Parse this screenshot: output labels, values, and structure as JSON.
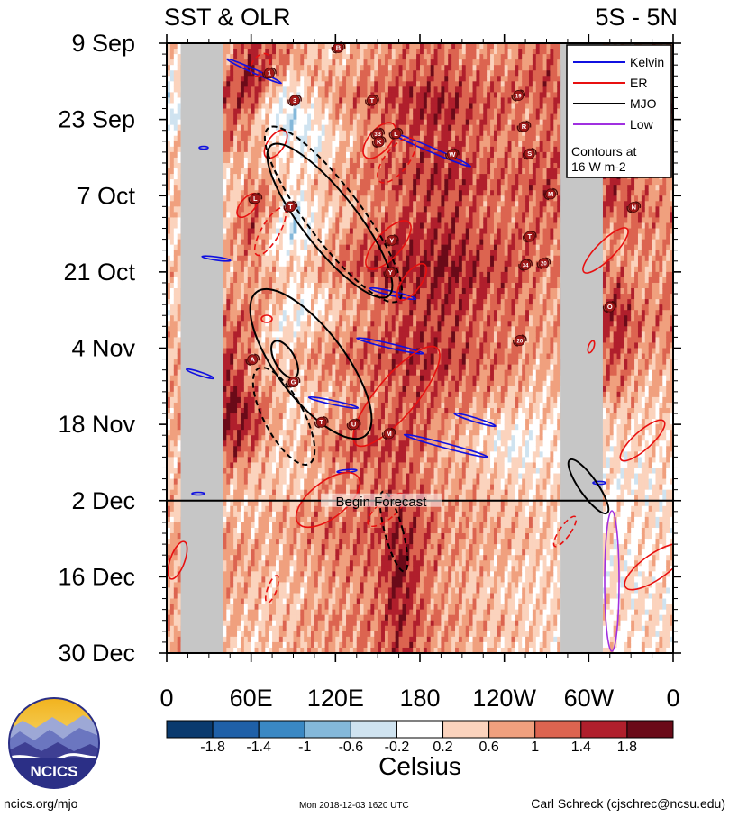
{
  "chart_data": {
    "type": "heatmap",
    "title_left": "SST & OLR",
    "title_right": "5S - 5N",
    "ytick_labels": [
      "9 Sep",
      "23 Sep",
      "7 Oct",
      "21 Oct",
      "4 Nov",
      "18 Nov",
      "2 Dec",
      "16 Dec",
      "30 Dec"
    ],
    "xtick_labels": [
      "0",
      "60E",
      "120E",
      "180",
      "120W",
      "60W",
      "0"
    ],
    "x_range_deg_east": [
      0,
      360
    ],
    "time_range_days": [
      0,
      112
    ],
    "forecast_label": "Begin Forecast",
    "forecast_start_day": 84,
    "legend": [
      {
        "label": "Kelvin",
        "color": "#1010e0"
      },
      {
        "label": "ER",
        "color": "#e81010"
      },
      {
        "label": "MJO",
        "color": "#000000"
      },
      {
        "label": "Low",
        "color": "#a030e0"
      }
    ],
    "legend_note": [
      "Contours at",
      "16 W m-2"
    ],
    "colorbar": {
      "label": "Celsius",
      "tick_labels": [
        "-1.8",
        "-1.4",
        "-1",
        "-0.6",
        "-0.2",
        "0.2",
        "0.6",
        "1",
        "1.4",
        "1.8"
      ],
      "colors": [
        "#0a3a6e",
        "#1f60a8",
        "#3a88c4",
        "#84b8da",
        "#cfe3f0",
        "#ffffff",
        "#fbd3bd",
        "#f0a07e",
        "#dc6450",
        "#b01f2c",
        "#6a0a18"
      ]
    },
    "land_bands_deg": [
      [
        10,
        40
      ],
      [
        280,
        310
      ]
    ],
    "hovmoller_columns": [
      {
        "lon": 0,
        "values": [
          0.4,
          0.2,
          -0.3,
          -0.4,
          0.3,
          0.5,
          0.6,
          0.5,
          0.4,
          0.3,
          0.5,
          0.4,
          0.3,
          0.6,
          0.5,
          0.4,
          0.6,
          0.5,
          0.4,
          0.5,
          0.5,
          0.6,
          0.6,
          0.7,
          0.7,
          0.6,
          0.8,
          0.8
        ]
      },
      {
        "lon": 45,
        "values": [
          0.8,
          1.2,
          1.5,
          1.3,
          1.1,
          0.6,
          0.3,
          0.4,
          0.7,
          0.8,
          0.6,
          0.9,
          1.1,
          1.3,
          1.5,
          1.7,
          1.9,
          1.8,
          1.6,
          1.0,
          0.6,
          0.5,
          0.7,
          0.9,
          0.8,
          0.7,
          0.6,
          0.5
        ]
      },
      {
        "lon": 60,
        "values": [
          1.6,
          1.9,
          1.5,
          0.9,
          0.8,
          0.6,
          0.9,
          1.2,
          1.4,
          1.1,
          0.9,
          0.7,
          1.2,
          1.0,
          0.8,
          0.9,
          1.4,
          1.6,
          1.2,
          0.7,
          0.6,
          0.4,
          0.6,
          0.8,
          0.7,
          0.6,
          0.5,
          0.4
        ]
      },
      {
        "lon": 75,
        "values": [
          1.2,
          1.0,
          0.3,
          -0.1,
          0.2,
          0.4,
          0.8,
          1.0,
          0.4,
          0.2,
          0.6,
          0.9,
          0.3,
          0.1,
          0.5,
          0.7,
          0.9,
          0.8,
          0.5,
          0.4,
          0.5,
          0.6,
          0.7,
          0.6,
          0.5,
          0.4,
          0.6,
          0.5
        ]
      },
      {
        "lon": 90,
        "values": [
          0.9,
          0.4,
          -0.2,
          -0.4,
          -0.1,
          0.3,
          0.2,
          -0.2,
          -0.4,
          0.1,
          0.4,
          0.2,
          -0.1,
          0.3,
          0.6,
          0.4,
          0.2,
          0.3,
          0.5,
          0.4,
          0.4,
          0.7,
          0.8,
          0.7,
          0.6,
          0.5,
          0.6,
          0.7
        ]
      },
      {
        "lon": 105,
        "values": [
          0.6,
          0.8,
          0.5,
          0.1,
          -0.2,
          0.2,
          0.5,
          0.3,
          0.1,
          0.5,
          0.7,
          0.3,
          0.2,
          0.6,
          0.9,
          0.7,
          0.4,
          0.6,
          0.8,
          0.6,
          0.7,
          0.9,
          1.0,
          0.9,
          0.8,
          0.7,
          0.9,
          0.8
        ]
      },
      {
        "lon": 120,
        "values": [
          0.5,
          0.7,
          0.9,
          0.6,
          0.3,
          0.6,
          0.8,
          0.5,
          0.7,
          0.9,
          1.0,
          0.6,
          0.5,
          0.8,
          1.1,
          0.8,
          0.6,
          0.9,
          1.2,
          0.9,
          0.9,
          1.0,
          1.1,
          1.0,
          0.9,
          0.8,
          0.9,
          0.8
        ]
      },
      {
        "lon": 135,
        "values": [
          0.7,
          0.9,
          1.1,
          0.8,
          0.6,
          0.9,
          1.0,
          0.7,
          0.9,
          1.2,
          1.3,
          0.9,
          0.8,
          1.0,
          1.2,
          0.9,
          0.8,
          1.1,
          1.3,
          1.0,
          1.0,
          1.1,
          1.2,
          1.1,
          1.0,
          0.9,
          1.0,
          0.9
        ]
      },
      {
        "lon": 150,
        "values": [
          0.8,
          1.0,
          1.3,
          1.0,
          0.8,
          1.1,
          1.2,
          0.9,
          1.1,
          1.4,
          1.5,
          1.1,
          1.0,
          1.2,
          1.3,
          1.1,
          1.0,
          1.2,
          1.4,
          1.2,
          1.1,
          1.2,
          1.3,
          1.2,
          1.1,
          1.0,
          1.1,
          1.0
        ]
      },
      {
        "lon": 165,
        "values": [
          1.0,
          1.2,
          1.5,
          1.3,
          1.1,
          1.2,
          1.4,
          1.2,
          1.3,
          1.5,
          1.6,
          1.4,
          1.3,
          1.4,
          1.5,
          1.3,
          1.2,
          1.3,
          1.4,
          1.3,
          1.4,
          1.5,
          1.7,
          1.8,
          1.9,
          1.8,
          1.7,
          1.6
        ]
      },
      {
        "lon": 180,
        "values": [
          1.1,
          1.3,
          1.6,
          1.5,
          1.3,
          1.4,
          1.5,
          1.3,
          1.5,
          1.6,
          1.7,
          1.5,
          1.4,
          1.5,
          1.6,
          1.4,
          1.3,
          1.2,
          1.1,
          1.0,
          1.2,
          1.3,
          1.4,
          1.3,
          1.2,
          1.1,
          1.2,
          1.1
        ]
      },
      {
        "lon": 195,
        "values": [
          1.2,
          1.4,
          1.7,
          1.6,
          1.4,
          1.5,
          1.6,
          1.4,
          1.5,
          1.7,
          1.8,
          1.6,
          1.5,
          1.4,
          1.5,
          1.3,
          1.1,
          0.9,
          0.7,
          0.8,
          0.8,
          0.9,
          1.0,
          0.9,
          0.8,
          0.8,
          0.9,
          0.8
        ]
      },
      {
        "lon": 210,
        "values": [
          1.0,
          1.2,
          1.5,
          1.4,
          1.3,
          1.4,
          1.5,
          1.3,
          1.4,
          1.6,
          1.7,
          1.5,
          1.4,
          1.3,
          1.4,
          1.2,
          1.0,
          0.8,
          0.6,
          0.7,
          0.7,
          0.8,
          0.9,
          0.8,
          0.7,
          0.7,
          0.8,
          0.7
        ]
      },
      {
        "lon": 225,
        "values": [
          0.9,
          1.1,
          1.3,
          1.2,
          1.1,
          1.2,
          1.3,
          1.1,
          1.2,
          1.4,
          1.5,
          1.3,
          1.2,
          1.1,
          1.2,
          1.0,
          0.8,
          0.5,
          0.3,
          0.5,
          0.6,
          0.7,
          0.8,
          0.7,
          0.6,
          0.6,
          0.7,
          0.6
        ]
      },
      {
        "lon": 240,
        "values": [
          0.8,
          1.0,
          1.2,
          1.1,
          1.0,
          1.1,
          1.2,
          1.0,
          1.1,
          1.3,
          1.4,
          1.2,
          1.1,
          1.0,
          1.1,
          0.9,
          0.6,
          0.3,
          0.0,
          0.3,
          0.5,
          0.6,
          0.7,
          0.6,
          0.5,
          0.5,
          0.6,
          0.5
        ]
      },
      {
        "lon": 255,
        "values": [
          1.0,
          1.2,
          1.1,
          0.9,
          1.0,
          1.2,
          1.3,
          1.1,
          1.2,
          1.3,
          1.2,
          1.1,
          1.0,
          0.9,
          0.8,
          0.7,
          0.5,
          0.2,
          -0.1,
          0.2,
          0.4,
          0.5,
          0.6,
          0.5,
          0.4,
          0.4,
          0.5,
          0.4
        ]
      },
      {
        "lon": 270,
        "values": [
          1.2,
          1.4,
          1.3,
          1.1,
          1.2,
          1.3,
          1.4,
          1.2,
          1.1,
          1.0,
          0.9,
          0.8,
          0.7,
          0.8,
          0.6,
          0.5,
          0.4,
          0.3,
          0.2,
          0.3,
          0.4,
          0.5,
          0.5,
          0.4,
          0.4,
          0.3,
          0.4,
          0.3
        ]
      },
      {
        "lon": 322,
        "values": [
          0.4,
          0.6,
          0.8,
          1.0,
          1.2,
          1.4,
          1.5,
          1.3,
          1.0,
          0.8,
          1.1,
          1.4,
          1.6,
          1.5,
          1.3,
          1.1,
          0.8,
          0.5,
          0.3,
          0.2,
          0.1,
          0.2,
          0.2,
          0.2,
          0.2,
          0.2,
          0.3,
          0.2
        ]
      },
      {
        "lon": 337,
        "values": [
          0.6,
          0.8,
          1.0,
          1.2,
          1.1,
          0.9,
          1.0,
          1.2,
          1.1,
          0.9,
          0.7,
          0.9,
          1.1,
          1.0,
          0.8,
          0.6,
          0.5,
          0.4,
          0.3,
          0.2,
          0.2,
          0.3,
          0.3,
          0.2,
          0.2,
          0.3,
          0.3,
          0.2
        ]
      },
      {
        "lon": 352,
        "values": [
          0.7,
          0.9,
          1.1,
          0.9,
          0.8,
          0.7,
          0.9,
          1.0,
          0.9,
          0.8,
          0.9,
          1.0,
          1.1,
          0.9,
          0.8,
          0.6,
          0.5,
          0.5,
          0.4,
          0.3,
          0.2,
          0.2,
          0.3,
          0.3,
          0.2,
          0.2,
          0.3,
          0.3
        ]
      }
    ],
    "storms": [
      {
        "label": "B",
        "lon": 122,
        "day": 0.8
      },
      {
        "label": "1",
        "lon": 73,
        "day": 5.5
      },
      {
        "label": "3",
        "lon": 91,
        "day": 10.5
      },
      {
        "label": "T",
        "lon": 146,
        "day": 10.5
      },
      {
        "label": "19",
        "lon": 250,
        "day": 9.6
      },
      {
        "label": "R",
        "lon": 254,
        "day": 15.3
      },
      {
        "label": "3B",
        "lon": 150,
        "day": 16.6
      },
      {
        "label": "L",
        "lon": 163,
        "day": 16.6
      },
      {
        "label": "K",
        "lon": 151,
        "day": 18.1
      },
      {
        "label": "W",
        "lon": 203,
        "day": 20.4
      },
      {
        "label": "S",
        "lon": 258,
        "day": 20.3
      },
      {
        "label": "L",
        "lon": 63,
        "day": 28.5
      },
      {
        "label": "T",
        "lon": 88,
        "day": 30.0
      },
      {
        "label": "M",
        "lon": 273,
        "day": 27.7
      },
      {
        "label": "N",
        "lon": 332,
        "day": 30.1
      },
      {
        "label": "T",
        "lon": 258,
        "day": 35.5
      },
      {
        "label": "Y",
        "lon": 160,
        "day": 36.2
      },
      {
        "label": "34",
        "lon": 255,
        "day": 40.7
      },
      {
        "label": "20",
        "lon": 268,
        "day": 40.4
      },
      {
        "label": "Y",
        "lon": 159,
        "day": 42.1
      },
      {
        "label": "O",
        "lon": 315,
        "day": 48.4
      },
      {
        "label": "20",
        "lon": 251,
        "day": 54.6
      },
      {
        "label": "A",
        "lon": 61,
        "day": 58.1
      },
      {
        "label": "G",
        "lon": 90,
        "day": 62.2
      },
      {
        "label": "T",
        "lon": 110,
        "day": 69.6
      },
      {
        "label": "U",
        "lon": 133,
        "day": 70.0
      },
      {
        "label": "M",
        "lon": 158,
        "day": 71.7
      }
    ]
  },
  "footer": {
    "logo_text": "NCICS",
    "url": "ncics.org/mjo",
    "timestamp": "Mon 2018-12-03 1620 UTC",
    "author": "Carl Schreck (cjschrec@ncsu.edu)"
  }
}
